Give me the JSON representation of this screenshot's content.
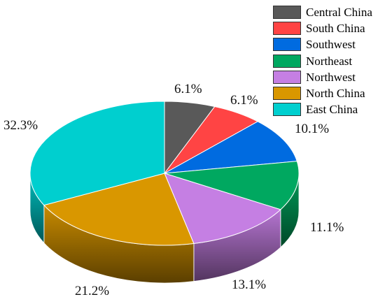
{
  "chart_data": {
    "type": "pie",
    "title": "",
    "categories": [
      "Central China",
      "South China",
      "Southwest",
      "Northeast",
      "Northwest",
      "North China",
      "East China"
    ],
    "values": [
      6.1,
      6.1,
      10.1,
      11.1,
      13.1,
      21.2,
      32.3
    ],
    "labels": [
      "6.1%",
      "6.1%",
      "10.1%",
      "11.1%",
      "13.1%",
      "21.2%",
      "32.3%"
    ],
    "colors": [
      "#595959",
      "#ff4444",
      "#006be0",
      "#00a860",
      "#c57fe3",
      "#d99700",
      "#00cfcf"
    ],
    "legend_position": "top-right",
    "three_d": true,
    "start_angle_degrees": 0,
    "direction": "clockwise"
  }
}
